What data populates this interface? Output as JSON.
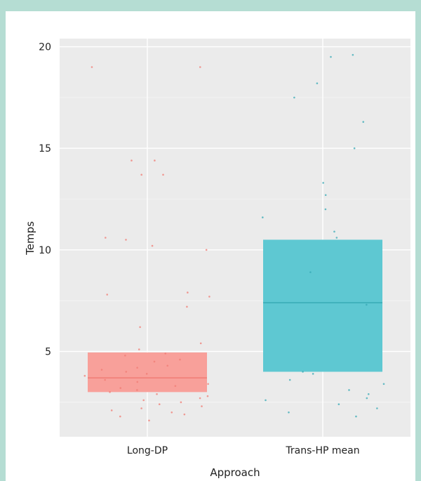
{
  "chart_data": {
    "type": "boxplot",
    "xlabel": "Approach",
    "ylabel": "Temps",
    "categories": [
      "Long-DP",
      "Trans-HP mean"
    ],
    "ylim": [
      0.8,
      20.4
    ],
    "yticks": [
      5,
      10,
      15,
      20
    ],
    "grid": true,
    "boxes": [
      {
        "category": "Long-DP",
        "q1": 3.0,
        "median": 3.7,
        "q3": 4.95,
        "color": "#f8a09a",
        "line_color": "#f07c74"
      },
      {
        "category": "Trans-HP mean",
        "q1": 4.0,
        "median": 7.4,
        "q3": 10.5,
        "color": "#5ec8d2",
        "line_color": "#37aab5"
      }
    ],
    "points": [
      {
        "category": "Long-DP",
        "values": [
          19.0,
          19.0,
          14.4,
          14.4,
          13.7,
          13.7,
          10.6,
          10.5,
          10.2,
          10.0,
          7.9,
          7.8,
          7.7,
          7.2,
          6.2,
          5.4,
          5.1,
          4.9,
          4.8,
          4.6,
          4.5,
          4.3,
          4.2,
          4.1,
          4.0,
          3.9,
          3.8,
          3.6,
          3.5,
          3.4,
          3.3,
          3.2,
          3.1,
          3.0,
          2.9,
          2.8,
          2.7,
          2.6,
          2.5,
          2.4,
          2.3,
          2.2,
          2.1,
          2.0,
          1.9,
          1.8,
          1.6
        ]
      },
      {
        "category": "Trans-HP mean",
        "values": [
          19.6,
          19.5,
          18.2,
          17.5,
          16.3,
          15.0,
          13.3,
          12.7,
          12.0,
          11.6,
          10.9,
          10.6,
          8.9,
          7.3,
          4.0,
          3.9,
          3.6,
          3.4,
          3.1,
          2.9,
          2.7,
          2.6,
          2.4,
          2.2,
          2.0,
          1.8
        ]
      }
    ]
  }
}
